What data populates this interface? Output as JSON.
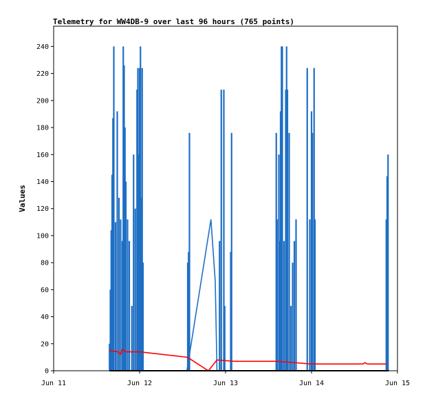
{
  "chart_data": {
    "type": "line",
    "title": "Telemetry for WW4DB-9 over last 96 hours (765 points)",
    "xlabel": "",
    "ylabel": "Values",
    "xlim": [
      "Jun 11",
      "Jun 15"
    ],
    "ylim": [
      0,
      255
    ],
    "x_ticks": [
      "Jun 11",
      "Jun 12",
      "Jun 13",
      "Jun 14",
      "Jun 15"
    ],
    "y_ticks": [
      0,
      20,
      40,
      60,
      80,
      100,
      120,
      140,
      160,
      180,
      200,
      220,
      240
    ],
    "grid": false,
    "legend": "none",
    "series": [
      {
        "color": "#1f6fc4",
        "spikes": [
          [
            11.65,
            20
          ],
          [
            11.66,
            60
          ],
          [
            11.67,
            104
          ],
          [
            11.68,
            145
          ],
          [
            11.69,
            187
          ],
          [
            11.7,
            240
          ],
          [
            11.72,
            110
          ],
          [
            11.74,
            192
          ],
          [
            11.76,
            128
          ],
          [
            11.78,
            112
          ],
          [
            11.8,
            96
          ],
          [
            11.81,
            240
          ],
          [
            11.82,
            226
          ],
          [
            11.83,
            180
          ],
          [
            11.84,
            140
          ],
          [
            11.86,
            112
          ],
          [
            11.88,
            96
          ],
          [
            11.91,
            48
          ],
          [
            11.93,
            160
          ],
          [
            11.95,
            120
          ],
          [
            11.97,
            208
          ],
          [
            11.98,
            224
          ],
          [
            11.99,
            160
          ],
          [
            12.0,
            224
          ],
          [
            12.01,
            240
          ],
          [
            12.02,
            128
          ],
          [
            12.03,
            224
          ],
          [
            12.04,
            80
          ],
          [
            12.56,
            80
          ],
          [
            12.57,
            88
          ],
          [
            12.58,
            176
          ],
          [
            12.93,
            96
          ],
          [
            12.95,
            208
          ],
          [
            12.98,
            208
          ],
          [
            12.99,
            48
          ],
          [
            13.06,
            88
          ],
          [
            13.07,
            176
          ],
          [
            13.59,
            176
          ],
          [
            13.6,
            112
          ],
          [
            13.62,
            160
          ],
          [
            13.63,
            96
          ],
          [
            13.64,
            192
          ],
          [
            13.65,
            240
          ],
          [
            13.66,
            240
          ],
          [
            13.68,
            96
          ],
          [
            13.7,
            208
          ],
          [
            13.71,
            240
          ],
          [
            13.72,
            208
          ],
          [
            13.74,
            176
          ],
          [
            13.76,
            48
          ],
          [
            13.78,
            80
          ],
          [
            13.8,
            96
          ],
          [
            13.82,
            112
          ],
          [
            13.95,
            224
          ],
          [
            13.98,
            112
          ],
          [
            14.0,
            192
          ],
          [
            14.01,
            176
          ],
          [
            14.03,
            224
          ],
          [
            14.04,
            112
          ],
          [
            14.87,
            112
          ],
          [
            14.88,
            144
          ],
          [
            14.89,
            160
          ]
        ],
        "line_points": [
          [
            12.55,
            0
          ],
          [
            12.83,
            112
          ],
          [
            12.88,
            66
          ],
          [
            12.9,
            0
          ]
        ]
      },
      {
        "color": "#ff0000",
        "points": [
          [
            11.65,
            15
          ],
          [
            11.75,
            14
          ],
          [
            11.78,
            12
          ],
          [
            11.8,
            16
          ],
          [
            11.84,
            14
          ],
          [
            11.9,
            14
          ],
          [
            12.0,
            14
          ],
          [
            12.55,
            10
          ],
          [
            12.58,
            9
          ],
          [
            12.8,
            0
          ],
          [
            12.9,
            8
          ],
          [
            13.1,
            7
          ],
          [
            13.6,
            7
          ],
          [
            13.8,
            6
          ],
          [
            14.0,
            5
          ],
          [
            14.6,
            5
          ],
          [
            14.62,
            6
          ],
          [
            14.65,
            5
          ],
          [
            14.88,
            5
          ]
        ]
      },
      {
        "color": "#000000",
        "points": [
          [
            11.65,
            0
          ],
          [
            14.9,
            0
          ]
        ]
      }
    ]
  }
}
